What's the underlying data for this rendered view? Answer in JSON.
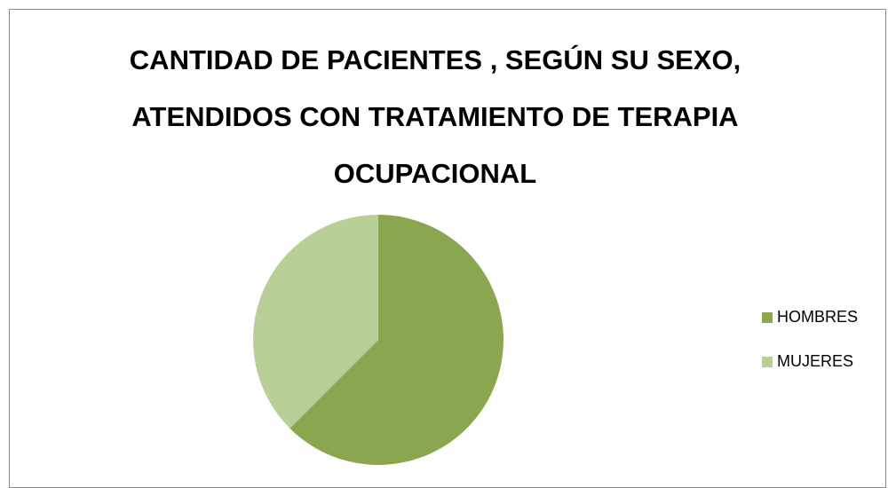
{
  "chart_data": {
    "type": "pie",
    "title": "CANTIDAD DE PACIENTES , SEGÚN SU SEXO, ATENDIDOS CON TRATAMIENTO DE TERAPIA OCUPACIONAL",
    "categories": [
      "HOMBRES",
      "MUJERES"
    ],
    "values": [
      62.5,
      37.5
    ],
    "colors": [
      "#8aa74f",
      "#b9cf98"
    ],
    "legend": "right"
  }
}
